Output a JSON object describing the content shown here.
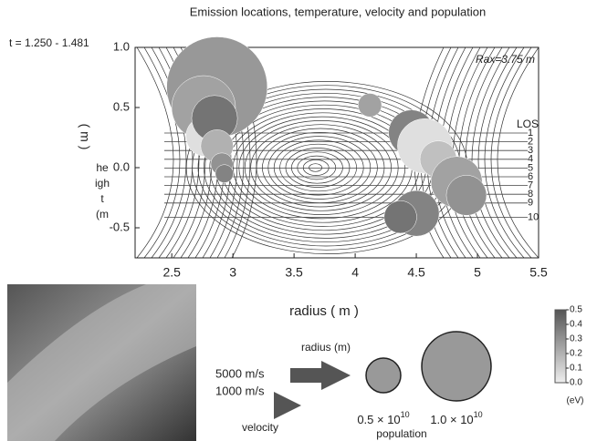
{
  "chart_data": {
    "type": "bubble",
    "title": "Emission locations, temperature, velocity and population",
    "time_label": "t = 1.250 - 1.481",
    "annotation": "Rax=3.75 m",
    "x_label": "radius ( m )",
    "y_label_rotated": "( m )",
    "y_label_lines": [
      "he",
      "igh",
      "t",
      "(m"
    ],
    "xlim": [
      2.2,
      5.5
    ],
    "ylim": [
      -0.75,
      1.0
    ],
    "xticks": [
      2.5,
      3.0,
      3.5,
      4.0,
      4.5,
      5.0,
      5.5
    ],
    "yticks": [
      -0.5,
      {
        "value": 0,
        "label": "0.0"
      },
      0.5,
      {
        "value": 1,
        "label": "1.0"
      }
    ],
    "los_title": "LOS",
    "los_labels": [
      "1",
      "2",
      "3",
      "4",
      "5",
      "6",
      "7",
      "8",
      "9",
      "10"
    ],
    "points": {
      "x": [
        2.87,
        2.76,
        2.78,
        2.85,
        2.87,
        2.91,
        2.93,
        4.12,
        4.46,
        4.57,
        4.68,
        4.83,
        4.91,
        4.5,
        4.37
      ],
      "y": [
        0.67,
        0.5,
        0.26,
        0.41,
        0.18,
        0.03,
        -0.05,
        0.52,
        0.29,
        0.18,
        0.07,
        -0.12,
        -0.23,
        -0.38,
        -0.41
      ],
      "size": [
        1.45,
        0.92,
        0.58,
        0.66,
        0.47,
        0.32,
        0.26,
        0.34,
        0.66,
        0.79,
        0.53,
        0.74,
        0.58,
        0.66,
        0.47
      ],
      "temperature": [
        0.28,
        0.25,
        0.05,
        0.4,
        0.2,
        0.3,
        0.35,
        0.25,
        0.35,
        0.05,
        0.15,
        0.25,
        0.3,
        0.35,
        0.4
      ]
    },
    "legend_radius_label": "radius (m)",
    "velocity_labels": [
      "5000 m/s",
      "1000 m/s"
    ],
    "velocity_title": "velocity",
    "population_legend": [
      {
        "value": 0.5,
        "mantissa": "0.5 × 10",
        "exponent": "10"
      },
      {
        "value": 1.0,
        "mantissa": "1.0 × 10",
        "exponent": "10"
      }
    ],
    "population_title": "population",
    "clim": [
      0,
      0.5
    ],
    "colorbar_ticks": [
      0.5,
      0.4,
      0.3,
      0.2,
      0.1,
      {
        "value": 0,
        "label": "0.0"
      }
    ],
    "colorbar_label": "(eV)"
  }
}
